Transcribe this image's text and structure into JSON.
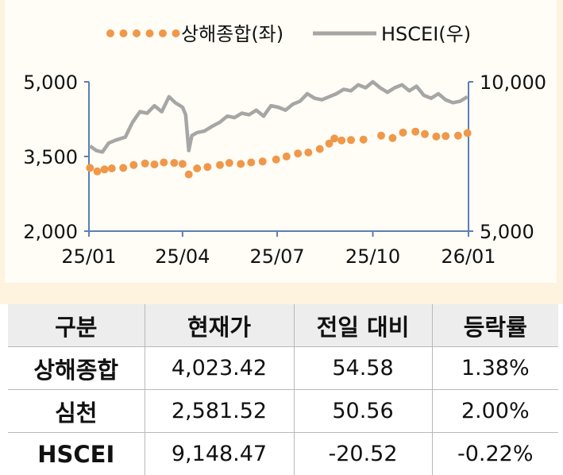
{
  "chart_data": {
    "type": "line",
    "legend_position": "top",
    "x_tick_labels": [
      "25/01",
      "25/04",
      "25/07",
      "25/10",
      "26/01"
    ],
    "y_left": {
      "ticks": [
        "2,000",
        "3,500",
        "5,000"
      ],
      "min": 2000,
      "max": 5000
    },
    "y_right": {
      "ticks": [
        "5,000",
        "10,000"
      ],
      "min": 5000,
      "max": 10000
    },
    "series": [
      {
        "name": "상해종합(좌)",
        "axis": "left",
        "style": "dotted",
        "color": "#f0984a",
        "values": [
          [
            "25/01/02",
            3270
          ],
          [
            "25/01/09",
            3200
          ],
          [
            "25/01/16",
            3240
          ],
          [
            "25/01/23",
            3260
          ],
          [
            "25/02/03",
            3270
          ],
          [
            "25/02/13",
            3330
          ],
          [
            "25/02/24",
            3360
          ],
          [
            "25/03/05",
            3340
          ],
          [
            "25/03/14",
            3380
          ],
          [
            "25/03/24",
            3370
          ],
          [
            "25/04/01",
            3350
          ],
          [
            "25/04/07",
            3140
          ],
          [
            "25/04/15",
            3260
          ],
          [
            "25/04/25",
            3290
          ],
          [
            "25/05/07",
            3330
          ],
          [
            "25/05/16",
            3370
          ],
          [
            "25/05/27",
            3350
          ],
          [
            "25/06/06",
            3380
          ],
          [
            "25/06/17",
            3400
          ],
          [
            "25/06/30",
            3440
          ],
          [
            "25/07/10",
            3500
          ],
          [
            "25/07/21",
            3560
          ],
          [
            "25/07/31",
            3580
          ],
          [
            "25/08/11",
            3650
          ],
          [
            "25/08/20",
            3760
          ],
          [
            "25/08/25",
            3860
          ],
          [
            "25/09/01",
            3820
          ],
          [
            "25/09/10",
            3830
          ],
          [
            "25/09/22",
            3840
          ],
          [
            "25/10/09",
            3920
          ],
          [
            "25/10/20",
            3870
          ],
          [
            "25/10/30",
            3980
          ],
          [
            "25/11/11",
            4000
          ],
          [
            "25/11/20",
            3950
          ],
          [
            "25/12/01",
            3900
          ],
          [
            "25/12/10",
            3910
          ],
          [
            "25/12/22",
            3920
          ],
          [
            "25/12/31",
            3970
          ]
        ]
      },
      {
        "name": "HSCEI(우)",
        "axis": "right",
        "style": "solid",
        "color": "#a6a6a6",
        "values": [
          [
            "25/01/02",
            7850
          ],
          [
            "25/01/08",
            7700
          ],
          [
            "25/01/14",
            7650
          ],
          [
            "25/01/20",
            7950
          ],
          [
            "25/01/27",
            8050
          ],
          [
            "25/02/05",
            8150
          ],
          [
            "25/02/12",
            8650
          ],
          [
            "25/02/19",
            9000
          ],
          [
            "25/02/26",
            8950
          ],
          [
            "25/03/05",
            9200
          ],
          [
            "25/03/12",
            9000
          ],
          [
            "25/03/19",
            9500
          ],
          [
            "25/03/25",
            9300
          ],
          [
            "25/04/01",
            9150
          ],
          [
            "25/04/04",
            8900
          ],
          [
            "25/04/07",
            7700
          ],
          [
            "25/04/10",
            8200
          ],
          [
            "25/04/15",
            8300
          ],
          [
            "25/04/22",
            8350
          ],
          [
            "25/04/29",
            8500
          ],
          [
            "25/05/07",
            8650
          ],
          [
            "25/05/14",
            8850
          ],
          [
            "25/05/21",
            8800
          ],
          [
            "25/05/28",
            8950
          ],
          [
            "25/06/04",
            8900
          ],
          [
            "25/06/11",
            9050
          ],
          [
            "25/06/18",
            8850
          ],
          [
            "25/06/25",
            9200
          ],
          [
            "25/07/02",
            9150
          ],
          [
            "25/07/09",
            9050
          ],
          [
            "25/07/16",
            9250
          ],
          [
            "25/07/23",
            9350
          ],
          [
            "25/07/30",
            9600
          ],
          [
            "25/08/06",
            9450
          ],
          [
            "25/08/13",
            9400
          ],
          [
            "25/08/20",
            9500
          ],
          [
            "25/08/27",
            9600
          ],
          [
            "25/09/03",
            9750
          ],
          [
            "25/09/10",
            9700
          ],
          [
            "25/09/17",
            9900
          ],
          [
            "25/09/24",
            9800
          ],
          [
            "25/10/01",
            10000
          ],
          [
            "25/10/08",
            9800
          ],
          [
            "25/10/15",
            9650
          ],
          [
            "25/10/22",
            9800
          ],
          [
            "25/10/29",
            9900
          ],
          [
            "25/11/05",
            9700
          ],
          [
            "25/11/12",
            9850
          ],
          [
            "25/11/19",
            9550
          ],
          [
            "25/11/26",
            9450
          ],
          [
            "25/12/03",
            9600
          ],
          [
            "25/12/10",
            9400
          ],
          [
            "25/12/17",
            9300
          ],
          [
            "25/12/24",
            9350
          ],
          [
            "25/12/31",
            9500
          ]
        ]
      }
    ]
  },
  "table": {
    "headers": [
      "구분",
      "현재가",
      "전일 대비",
      "등락률"
    ],
    "rows": [
      {
        "label": "상해종합",
        "price": "4,023.42",
        "change": "54.58",
        "rate": "1.38%"
      },
      {
        "label": "심천",
        "price": "2,581.52",
        "change": "50.56",
        "rate": "2.00%"
      },
      {
        "label": "HSCEI",
        "price": "9,148.47",
        "change": "-20.52",
        "rate": "-0.22%"
      }
    ]
  }
}
